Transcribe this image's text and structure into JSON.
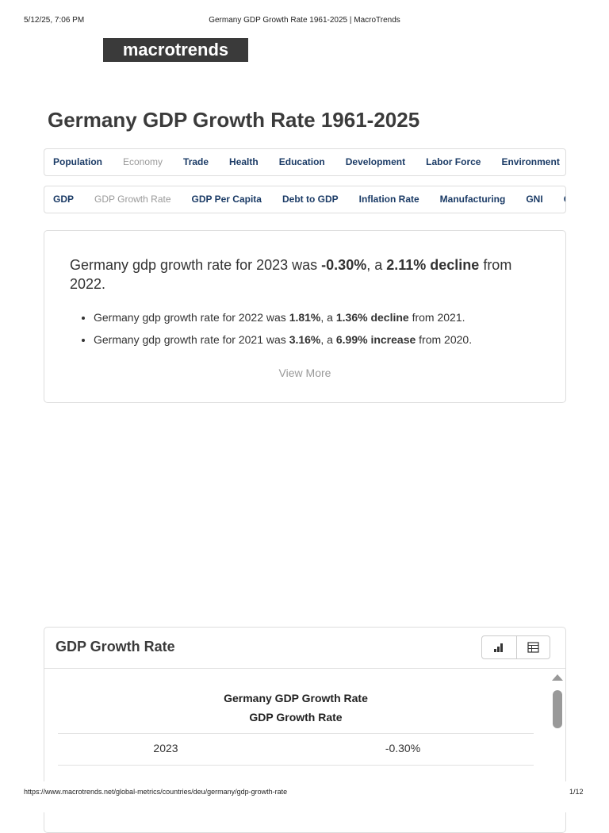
{
  "print_header": {
    "date": "5/12/25, 7:06 PM",
    "title": "Germany GDP Growth Rate 1961-2025 | MacroTrends"
  },
  "logo": "macrotrends",
  "title": "Germany GDP Growth Rate 1961-2025",
  "nav_primary": {
    "items": [
      "Population",
      "Economy",
      "Trade",
      "Health",
      "Education",
      "Development",
      "Labor Force",
      "Environment"
    ],
    "active_index": 1
  },
  "nav_secondary": {
    "items": [
      "GDP",
      "GDP Growth Rate",
      "GDP Per Capita",
      "Debt to GDP",
      "Inflation Rate",
      "Manufacturing",
      "GNI",
      "GN"
    ],
    "active_index": 1
  },
  "summary": {
    "lead": [
      {
        "text": "Germany gdp growth rate for 2023 was "
      },
      {
        "text": "-0.30%",
        "bold": true
      },
      {
        "text": ", a "
      },
      {
        "text": "2.11% decline",
        "bold": true
      },
      {
        "text": " from 2022."
      }
    ],
    "bullets": [
      [
        {
          "text": "Germany gdp growth rate for 2022 was "
        },
        {
          "text": "1.81%",
          "bold": true
        },
        {
          "text": ", a "
        },
        {
          "text": "1.36% decline",
          "bold": true
        },
        {
          "text": " from 2021."
        }
      ],
      [
        {
          "text": "Germany gdp growth rate for 2021 was "
        },
        {
          "text": "3.16%",
          "bold": true
        },
        {
          "text": ", a "
        },
        {
          "text": "6.99% increase",
          "bold": true
        },
        {
          "text": " from 2020."
        }
      ]
    ],
    "view_more": "View More"
  },
  "data_card": {
    "title": "GDP Growth Rate",
    "table": {
      "caption": "Germany GDP Growth Rate",
      "column_header": "GDP Growth Rate",
      "rows": [
        [
          "2023",
          "-0.30%"
        ]
      ]
    }
  },
  "print_footer": {
    "url": "https://www.macrotrends.net/global-metrics/countries/deu/germany/gdp-growth-rate",
    "page": "1/12"
  }
}
